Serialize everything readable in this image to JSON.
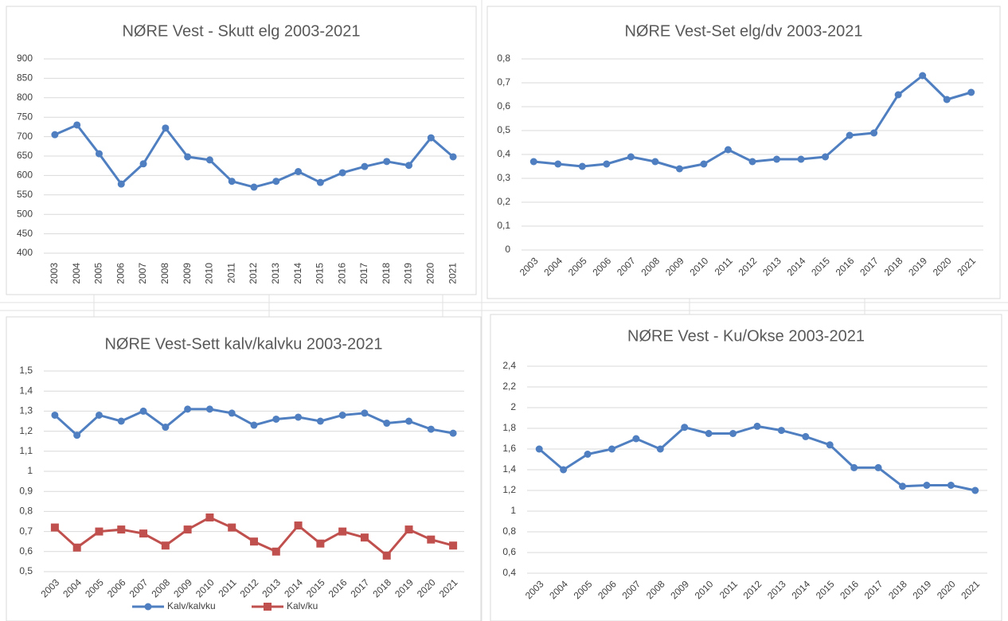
{
  "chart_data": [
    {
      "type": "line",
      "title": "NØRE Vest - Skutt elg 2003-2021",
      "categories": [
        "2003",
        "2004",
        "2005",
        "2006",
        "2007",
        "2008",
        "2009",
        "2010",
        "2011",
        "2012",
        "2013",
        "2014",
        "2015",
        "2016",
        "2017",
        "2018",
        "2019",
        "2020",
        "2021"
      ],
      "values": [
        705,
        730,
        656,
        578,
        630,
        722,
        648,
        640,
        585,
        570,
        585,
        610,
        582,
        607,
        623,
        636,
        626,
        697,
        648
      ],
      "color": "#4f7fc0",
      "ylim": [
        400,
        900
      ],
      "yticks": [
        400,
        450,
        500,
        550,
        600,
        650,
        700,
        750,
        800,
        850,
        900
      ],
      "grid": true
    },
    {
      "type": "line",
      "title": "NØRE Vest-Set elg/dv 2003-2021",
      "categories": [
        "2003",
        "2004",
        "2005",
        "2006",
        "2007",
        "2008",
        "2009",
        "2010",
        "2011",
        "2012",
        "2013",
        "2014",
        "2015",
        "2016",
        "2017",
        "2018",
        "2019",
        "2020",
        "2021"
      ],
      "values": [
        0.37,
        0.36,
        0.35,
        0.36,
        0.39,
        0.37,
        0.34,
        0.36,
        0.42,
        0.37,
        0.38,
        0.38,
        0.39,
        0.48,
        0.49,
        0.65,
        0.73,
        0.63,
        0.66
      ],
      "color": "#4f7fc0",
      "ylim": [
        0,
        0.8
      ],
      "yticks": [
        0,
        {
          "value": 0.1,
          "label": "0,1"
        },
        {
          "value": 0.2,
          "label": "0,2"
        },
        {
          "value": 0.3,
          "label": "0,3"
        },
        {
          "value": 0.4,
          "label": "0,4"
        },
        {
          "value": 0.5,
          "label": "0,5"
        },
        {
          "value": 0.6,
          "label": "0,6"
        },
        {
          "value": 0.7,
          "label": "0,7"
        },
        {
          "value": 0.8,
          "label": "0,8"
        }
      ],
      "grid": true
    },
    {
      "type": "line",
      "title": "NØRE Vest-Sett kalv/kalvku 2003-2021",
      "categories": [
        "2003",
        "2004",
        "2005",
        "2006",
        "2007",
        "2008",
        "2009",
        "2010",
        "2011",
        "2012",
        "2013",
        "2014",
        "2015",
        "2016",
        "2017",
        "2018",
        "2019",
        "2020",
        "2021"
      ],
      "series": [
        {
          "name": "Kalv/kalvku",
          "color": "#4f7fc0",
          "marker": "circle",
          "values": [
            1.28,
            1.18,
            1.28,
            1.25,
            1.3,
            1.22,
            1.31,
            1.31,
            1.29,
            1.23,
            1.26,
            1.27,
            1.25,
            1.28,
            1.29,
            1.24,
            1.25,
            1.21,
            1.19
          ]
        },
        {
          "name": "Kalv/ku",
          "color": "#c0504d",
          "marker": "square",
          "values": [
            0.72,
            0.62,
            0.7,
            0.71,
            0.69,
            0.63,
            0.71,
            0.77,
            0.72,
            0.65,
            0.6,
            0.73,
            0.64,
            0.7,
            0.67,
            0.58,
            0.71,
            0.66,
            0.63
          ]
        }
      ],
      "ylim": [
        0.5,
        1.5
      ],
      "yticks": [
        {
          "value": 0.5,
          "label": "0,5"
        },
        {
          "value": 0.6,
          "label": "0,6"
        },
        {
          "value": 0.7,
          "label": "0,7"
        },
        {
          "value": 0.8,
          "label": "0,8"
        },
        {
          "value": 0.9,
          "label": "0,9"
        },
        1,
        {
          "value": 1.1,
          "label": "1,1"
        },
        {
          "value": 1.2,
          "label": "1,2"
        },
        {
          "value": 1.3,
          "label": "1,3"
        },
        {
          "value": 1.4,
          "label": "1,4"
        },
        {
          "value": 1.5,
          "label": "1,5"
        }
      ],
      "grid": true,
      "legend": "bottom"
    },
    {
      "type": "line",
      "title": "NØRE Vest - Ku/Okse 2003-2021",
      "categories": [
        "2003",
        "2004",
        "2005",
        "2006",
        "2007",
        "2008",
        "2009",
        "2010",
        "2011",
        "2012",
        "2013",
        "2014",
        "2015",
        "2016",
        "2017",
        "2018",
        "2019",
        "2020",
        "2021"
      ],
      "values": [
        1.6,
        1.4,
        1.55,
        1.6,
        1.7,
        1.6,
        1.81,
        1.75,
        1.75,
        1.82,
        1.78,
        1.72,
        1.64,
        1.42,
        1.42,
        1.24,
        1.25,
        1.25,
        1.2
      ],
      "color": "#4f7fc0",
      "ylim": [
        0.4,
        2.4
      ],
      "yticks": [
        {
          "value": 0.4,
          "label": "0,4"
        },
        {
          "value": 0.6,
          "label": "0,6"
        },
        {
          "value": 0.8,
          "label": "0,8"
        },
        1,
        {
          "value": 1.2,
          "label": "1,2"
        },
        {
          "value": 1.4,
          "label": "1,4"
        },
        {
          "value": 1.6,
          "label": "1,6"
        },
        {
          "value": 1.8,
          "label": "1,8"
        },
        2,
        {
          "value": 2.2,
          "label": "2,2"
        },
        {
          "value": 2.4,
          "label": "2,4"
        }
      ],
      "grid": true
    }
  ]
}
